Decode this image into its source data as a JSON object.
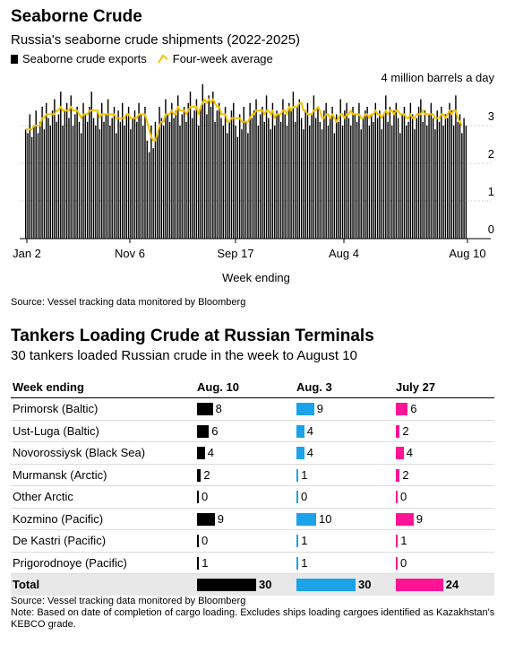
{
  "chart1": {
    "title": "Seaborne Crude",
    "subtitle": "Russia's seaborne crude shipments (2022-2025)",
    "legend": {
      "bar_label": "Seaborne crude exports",
      "line_label": "Four-week average"
    },
    "unit_label": "4 million barrels a day",
    "y_ticks": [
      "3",
      "2",
      "1",
      "0"
    ],
    "x_ticks": [
      "Jan 2",
      "Nov 6",
      "Sep 17",
      "Aug 4",
      "Aug 10"
    ],
    "xlabel": "Week ending",
    "source": "Source: Vessel tracking data monitored by Bloomberg"
  },
  "chart2": {
    "title": "Tankers Loading Crude at Russian Terminals",
    "subtitle": "30 tankers loaded Russian crude in the week to August 10",
    "header": {
      "label": "Week ending",
      "col1": "Aug. 10",
      "col2": "Aug. 3",
      "col3": "July 27"
    },
    "footer": {
      "source": "Source: Vessel tracking data monitored by Bloomberg",
      "note": "Note: Based on date of completion of cargo loading. Excludes ships loading cargoes identified as Kazakhstan's KEBCO grade."
    }
  },
  "colors": {
    "col1": "#000000",
    "col2": "#1aa3e8",
    "col3": "#ff1493",
    "line": "#f2c200"
  },
  "chart_data": [
    {
      "type": "bar",
      "title": "Seaborne Crude",
      "subtitle": "Russia's seaborne crude shipments (2022-2025)",
      "xlabel": "Week ending",
      "ylabel": "4 million barrels a day",
      "ylim": [
        0,
        4
      ],
      "x_tick_labels": [
        "Jan 2",
        "Nov 6",
        "Sep 17",
        "Aug 4",
        "Aug 10"
      ],
      "series": [
        {
          "name": "Seaborne crude exports",
          "kind": "bar",
          "values": [
            2.9,
            2.8,
            3.3,
            2.7,
            3.0,
            3.4,
            2.8,
            3.1,
            3.5,
            2.9,
            3.6,
            3.2,
            3.0,
            3.4,
            3.7,
            3.1,
            3.3,
            3.9,
            3.0,
            3.4,
            3.6,
            3.2,
            3.8,
            3.0,
            3.3,
            3.5,
            3.1,
            2.8,
            3.6,
            3.3,
            3.1,
            3.5,
            3.9,
            3.2,
            3.0,
            3.4,
            2.9,
            3.6,
            3.1,
            3.3,
            3.7,
            3.0,
            3.2,
            3.5,
            2.8,
            3.4,
            3.1,
            3.6,
            3.0,
            3.3,
            3.5,
            2.9,
            3.2,
            3.4,
            3.1,
            3.6,
            3.3,
            3.0,
            3.5,
            2.6,
            2.3,
            3.0,
            2.4,
            3.1,
            2.8,
            3.5,
            3.2,
            3.0,
            3.7,
            3.3,
            3.1,
            3.6,
            3.2,
            3.4,
            3.8,
            3.0,
            3.3,
            3.5,
            3.1,
            3.6,
            3.9,
            3.2,
            3.4,
            3.7,
            3.0,
            3.5,
            4.1,
            3.6,
            3.3,
            3.8,
            3.5,
            3.9,
            3.1,
            3.4,
            3.6,
            3.2,
            3.0,
            3.5,
            2.8,
            3.1,
            3.4,
            3.6,
            3.0,
            2.7,
            3.3,
            2.9,
            3.5,
            3.1,
            2.8,
            3.6,
            3.2,
            3.4,
            3.7,
            3.0,
            3.3,
            3.5,
            3.1,
            3.8,
            3.2,
            2.9,
            3.6,
            3.0,
            3.4,
            3.3,
            3.1,
            3.7,
            3.3,
            3.0,
            3.6,
            3.4,
            3.9,
            3.1,
            3.5,
            3.7,
            3.2,
            2.9,
            3.4,
            3.6,
            3.0,
            3.3,
            3.8,
            3.2,
            3.5,
            3.1,
            2.9,
            3.4,
            3.6,
            3.0,
            3.2,
            3.5,
            2.8,
            3.3,
            3.1,
            3.7,
            3.0,
            3.4,
            3.6,
            3.2,
            3.0,
            3.5,
            3.3,
            3.1,
            3.6,
            2.9,
            3.2,
            3.4,
            3.5,
            3.0,
            3.3,
            3.1,
            3.6,
            3.2,
            3.4,
            2.9,
            3.3,
            3.8,
            3.1,
            3.5,
            3.0,
            3.4,
            3.6,
            3.2,
            2.8,
            3.3,
            3.5,
            3.0,
            3.1,
            3.6,
            3.3,
            2.9,
            3.2,
            3.5,
            3.7,
            3.1,
            3.4,
            3.0,
            3.3,
            3.6,
            3.2,
            2.9,
            3.4,
            3.1,
            3.5,
            3.0,
            3.3,
            3.2,
            3.6,
            3.4,
            3.0,
            3.8,
            3.1,
            3.3,
            2.8,
            3.2,
            3.0
          ]
        },
        {
          "name": "Four-week average",
          "kind": "line",
          "values": [
            2.9,
            2.9,
            2.9,
            2.9,
            3.0,
            3.0,
            3.0,
            3.0,
            3.2,
            3.2,
            3.3,
            3.3,
            3.3,
            3.3,
            3.3,
            3.4,
            3.4,
            3.5,
            3.4,
            3.4,
            3.4,
            3.4,
            3.5,
            3.4,
            3.4,
            3.4,
            3.3,
            3.2,
            3.3,
            3.3,
            3.3,
            3.4,
            3.4,
            3.4,
            3.4,
            3.4,
            3.2,
            3.3,
            3.3,
            3.3,
            3.3,
            3.3,
            3.3,
            3.3,
            3.2,
            3.2,
            3.2,
            3.2,
            3.2,
            3.3,
            3.3,
            3.2,
            3.2,
            3.2,
            3.2,
            3.3,
            3.3,
            3.3,
            3.3,
            3.1,
            2.9,
            2.7,
            2.6,
            2.6,
            2.8,
            3.0,
            3.1,
            3.1,
            3.3,
            3.3,
            3.3,
            3.4,
            3.3,
            3.3,
            3.5,
            3.4,
            3.4,
            3.4,
            3.3,
            3.4,
            3.5,
            3.5,
            3.5,
            3.5,
            3.3,
            3.5,
            3.6,
            3.7,
            3.6,
            3.7,
            3.6,
            3.7,
            3.6,
            3.5,
            3.5,
            3.3,
            3.3,
            3.3,
            3.1,
            3.1,
            3.2,
            3.2,
            3.2,
            3.2,
            3.2,
            3.1,
            3.1,
            3.1,
            3.1,
            3.2,
            3.3,
            3.3,
            3.4,
            3.4,
            3.4,
            3.4,
            3.3,
            3.4,
            3.4,
            3.3,
            3.4,
            3.2,
            3.3,
            3.3,
            3.3,
            3.4,
            3.4,
            3.3,
            3.5,
            3.4,
            3.5,
            3.5,
            3.5,
            3.6,
            3.6,
            3.4,
            3.4,
            3.3,
            3.3,
            3.3,
            3.4,
            3.4,
            3.5,
            3.4,
            3.2,
            3.2,
            3.3,
            3.3,
            3.2,
            3.3,
            3.2,
            3.1,
            3.2,
            3.3,
            3.3,
            3.2,
            3.3,
            3.3,
            3.4,
            3.3,
            3.3,
            3.3,
            3.3,
            3.2,
            3.2,
            3.3,
            3.3,
            3.2,
            3.3,
            3.3,
            3.4,
            3.3,
            3.3,
            3.2,
            3.3,
            3.4,
            3.3,
            3.4,
            3.4,
            3.3,
            3.4,
            3.4,
            3.3,
            3.3,
            3.3,
            3.2,
            3.2,
            3.3,
            3.2,
            3.2,
            3.3,
            3.3,
            3.3,
            3.4,
            3.3,
            3.3,
            3.3,
            3.3,
            3.3,
            3.2,
            3.2,
            3.2,
            3.3,
            3.3,
            3.2,
            3.3,
            3.4,
            3.3,
            3.4,
            3.4,
            3.2,
            3.1,
            3.0
          ]
        }
      ]
    },
    {
      "type": "bar",
      "title": "Tankers Loading Crude at Russian Terminals",
      "subtitle": "30 tankers loaded Russian crude in the week to August 10",
      "categories": [
        "Primorsk (Baltic)",
        "Ust-Luga (Baltic)",
        "Novorossiysk (Black Sea)",
        "Murmansk (Arctic)",
        "Other Arctic",
        "Kozmino (Pacific)",
        "De Kastri (Pacific)",
        "Prigorodnoye (Pacific)"
      ],
      "series": [
        {
          "name": "Aug. 10",
          "values": [
            8,
            6,
            4,
            2,
            0,
            9,
            0,
            1
          ]
        },
        {
          "name": "Aug. 3",
          "values": [
            9,
            4,
            4,
            1,
            0,
            10,
            1,
            1
          ]
        },
        {
          "name": "July 27",
          "values": [
            6,
            2,
            4,
            2,
            0,
            9,
            1,
            0
          ]
        }
      ],
      "totals": {
        "label": "Total",
        "values": [
          30,
          30,
          24
        ]
      }
    }
  ]
}
